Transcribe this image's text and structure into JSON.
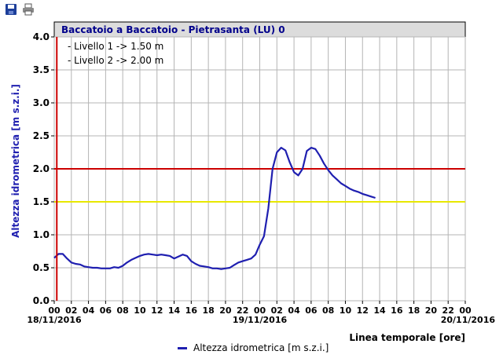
{
  "toolbar": {
    "items": [
      {
        "name": "save-icon"
      },
      {
        "name": "print-icon"
      }
    ]
  },
  "chart_data": {
    "type": "line",
    "title": "Baccatoio a Baccatoio - Pietrasanta (LU) 0",
    "ylabel": "Altezza idrometrica [m s.z.i.]",
    "xlabel": "Linea temporale [ore]",
    "ylim": [
      0,
      4
    ],
    "xlim": [
      0,
      48
    ],
    "y_ticks": [
      "0.0",
      "0.5",
      "1.0",
      "1.5",
      "2.0",
      "2.5",
      "3.0",
      "3.5",
      "4.0"
    ],
    "x_tick_labels": [
      "00",
      "02",
      "04",
      "06",
      "08",
      "10",
      "12",
      "14",
      "16",
      "18",
      "20",
      "22",
      "00",
      "02",
      "04",
      "06",
      "08",
      "10",
      "12",
      "14",
      "16",
      "18",
      "20",
      "22",
      "00"
    ],
    "date_labels": [
      {
        "hour": 0,
        "text": "18/11/2016"
      },
      {
        "hour": 24,
        "text": "19/11/2016"
      },
      {
        "hour": 48,
        "text": "20/11/2016"
      }
    ],
    "grid": true,
    "annotations": [
      "- Livello 1 -> 1.50 m",
      "- Livello 2 -> 2.00 m"
    ],
    "thresholds": [
      {
        "value": 1.5,
        "color": "#e8e800"
      },
      {
        "value": 2.0,
        "color": "#cc0000"
      }
    ],
    "series": [
      {
        "name": "Altezza idrometrica [m s.z.i.]",
        "color": "#1f1fb0",
        "x": [
          0,
          0.5,
          1,
          1.5,
          2,
          2.5,
          3,
          3.5,
          4,
          4.5,
          5,
          5.5,
          6,
          6.5,
          7,
          7.5,
          8,
          8.5,
          9,
          9.5,
          10,
          10.5,
          11,
          11.5,
          12,
          12.5,
          13,
          13.5,
          14,
          14.5,
          15,
          15.5,
          16,
          16.5,
          17,
          17.5,
          18,
          18.5,
          19,
          19.5,
          20,
          20.5,
          21,
          21.5,
          22,
          22.5,
          23,
          23.5,
          24,
          24.5,
          25,
          25.5,
          26,
          26.5,
          27,
          27.5,
          28,
          28.5,
          29,
          29.5,
          30,
          30.5,
          31,
          31.5,
          32,
          32.5,
          33,
          33.5,
          34,
          34.5,
          35,
          35.5,
          36,
          36.5,
          37,
          37.5
        ],
        "values": [
          0.65,
          0.71,
          0.71,
          0.64,
          0.58,
          0.56,
          0.55,
          0.52,
          0.51,
          0.5,
          0.5,
          0.49,
          0.49,
          0.49,
          0.51,
          0.5,
          0.53,
          0.58,
          0.62,
          0.65,
          0.68,
          0.7,
          0.71,
          0.7,
          0.69,
          0.7,
          0.69,
          0.68,
          0.64,
          0.67,
          0.7,
          0.68,
          0.6,
          0.56,
          0.53,
          0.52,
          0.51,
          0.49,
          0.49,
          0.48,
          0.49,
          0.5,
          0.54,
          0.58,
          0.6,
          0.62,
          0.64,
          0.7,
          0.85,
          0.98,
          1.4,
          2.0,
          2.25,
          2.32,
          2.28,
          2.1,
          1.95,
          1.9,
          2.0,
          2.27,
          2.32,
          2.3,
          2.2,
          2.08,
          1.98,
          1.9,
          1.84,
          1.78,
          1.74,
          1.7,
          1.67,
          1.65,
          1.62,
          1.6,
          1.58,
          1.56
        ]
      }
    ],
    "marker_hour": 0.3
  }
}
